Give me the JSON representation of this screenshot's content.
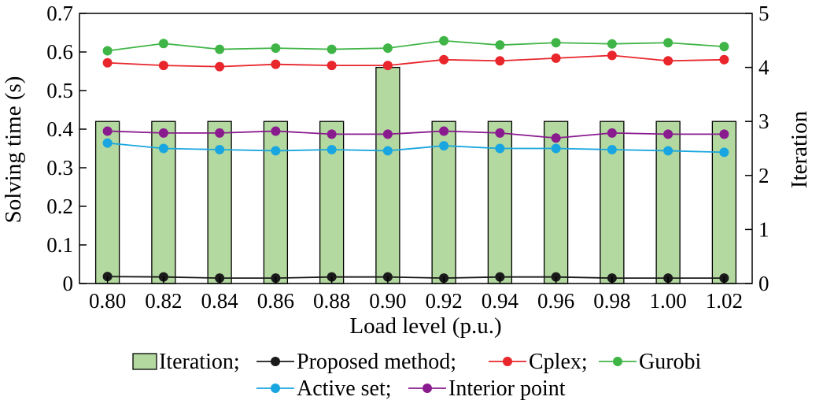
{
  "chart_data": {
    "type": "bar",
    "categories": [
      "0.80",
      "0.82",
      "0.84",
      "0.86",
      "0.88",
      "0.90",
      "0.92",
      "0.94",
      "0.96",
      "0.98",
      "1.00",
      "1.02"
    ],
    "xlabel": "Load level (p.u.)",
    "ylabel": "Solving time (s)",
    "y2label": "Iteration",
    "ylim": [
      0,
      0.7
    ],
    "y2lim": [
      0,
      5
    ],
    "yticks": [
      "0",
      "0.1",
      "0.2",
      "0.3",
      "0.4",
      "0.5",
      "0.6",
      "0.7"
    ],
    "y2ticks": [
      "0",
      "1",
      "2",
      "3",
      "4",
      "5"
    ],
    "legend_position": "bottom",
    "bars": {
      "name": "Iteration;",
      "axis": "right",
      "color": "#b3d9a0",
      "values": [
        3,
        3,
        3,
        3,
        3,
        4,
        3,
        3,
        3,
        3,
        3,
        3
      ]
    },
    "series": [
      {
        "name": "Proposed method;",
        "color": "#1a1a1a",
        "values": [
          0.018,
          0.017,
          0.014,
          0.014,
          0.017,
          0.017,
          0.014,
          0.017,
          0.017,
          0.014,
          0.014,
          0.014
        ]
      },
      {
        "name": "Cplex;",
        "color": "#e8262c",
        "values": [
          0.572,
          0.565,
          0.562,
          0.568,
          0.565,
          0.565,
          0.58,
          0.577,
          0.584,
          0.591,
          0.577,
          0.58
        ]
      },
      {
        "name": "Gurobi",
        "color": "#40b547",
        "values": [
          0.603,
          0.622,
          0.607,
          0.61,
          0.607,
          0.61,
          0.629,
          0.618,
          0.624,
          0.621,
          0.624,
          0.614
        ]
      },
      {
        "name": "Active set;",
        "color": "#19a6e0",
        "values": [
          0.364,
          0.35,
          0.347,
          0.344,
          0.347,
          0.344,
          0.357,
          0.35,
          0.35,
          0.347,
          0.344,
          0.34
        ]
      },
      {
        "name": "Interior point",
        "color": "#8a1b8f",
        "values": [
          0.395,
          0.39,
          0.39,
          0.395,
          0.387,
          0.387,
          0.395,
          0.39,
          0.377,
          0.39,
          0.387,
          0.387
        ]
      }
    ]
  }
}
